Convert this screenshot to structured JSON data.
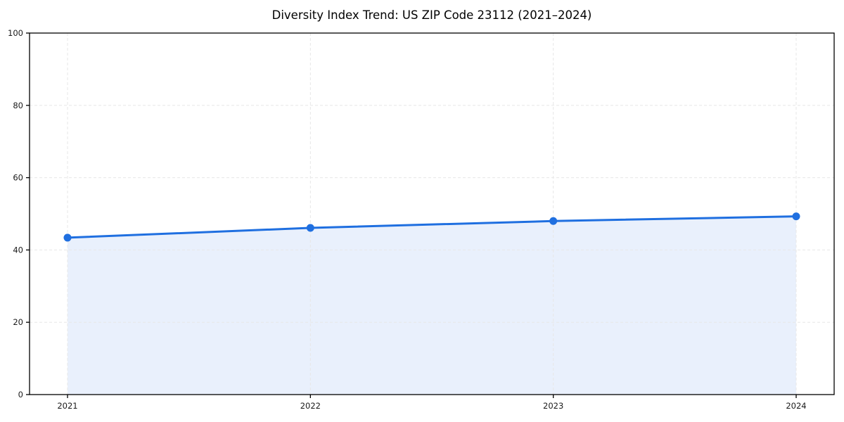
{
  "page": {
    "background": "#ffffff"
  },
  "chart_data": {
    "type": "area",
    "title": "Diversity Index Trend: US ZIP Code 23112 (2021–2024)",
    "categories": [
      "2021",
      "2022",
      "2023",
      "2024"
    ],
    "values": [
      43.4,
      46.1,
      48.0,
      49.3
    ],
    "xlabel": "",
    "ylabel": "",
    "ylim": [
      0,
      100
    ],
    "yticks": [
      0,
      20,
      40,
      60,
      80,
      100
    ],
    "grid": true,
    "grid_style": "dashed",
    "legend_position": "none",
    "colors": {
      "line": "#1f6fe0",
      "marker": "#1f6fe0",
      "fill": "#e9f0fc",
      "grid": "#e7e7e7",
      "axis": "#000000",
      "tick_text": "#1a1a1a",
      "title_text": "#000000"
    }
  }
}
